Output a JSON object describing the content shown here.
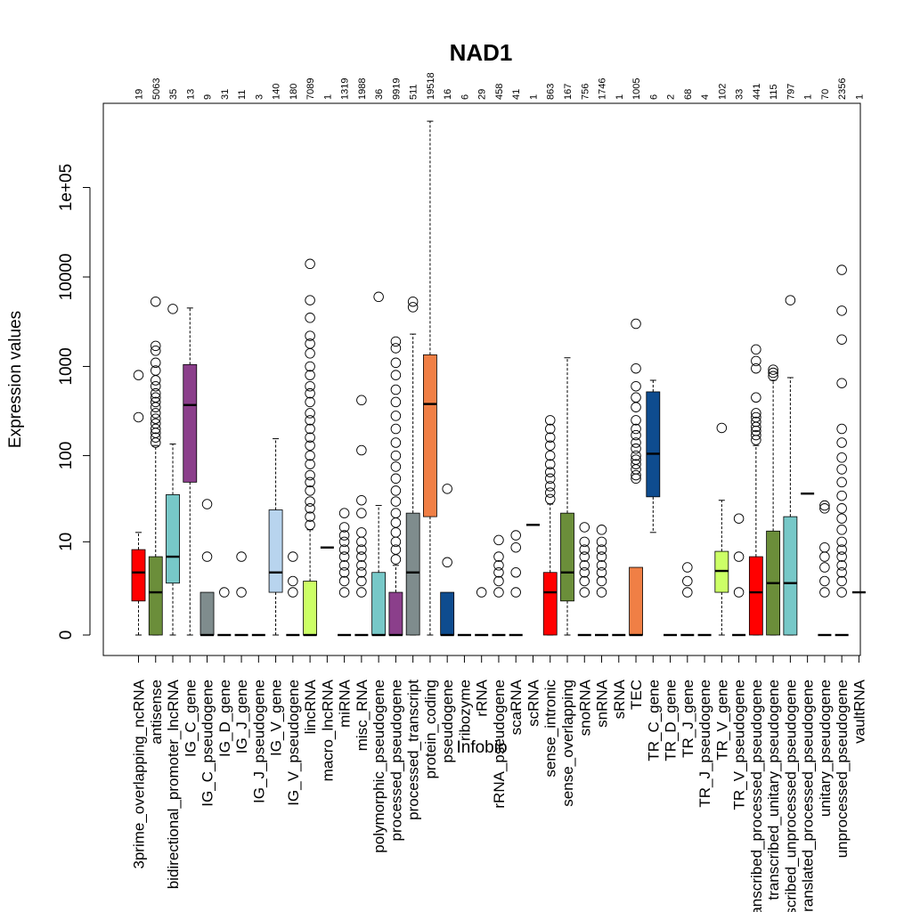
{
  "chart_data": {
    "type": "boxplot",
    "title": "NAD1",
    "xlabel": "Infobio",
    "ylabel": "Expression values",
    "y_scale": "log1p",
    "y_ticks": [
      {
        "value": 0,
        "label": "0"
      },
      {
        "value": 10,
        "label": "10"
      },
      {
        "value": 100,
        "label": "100"
      },
      {
        "value": 1000,
        "label": "1000"
      },
      {
        "value": 10000,
        "label": "10000"
      },
      {
        "value": 100000,
        "label": "1e+05"
      }
    ],
    "categories": [
      {
        "name": "3prime_overlapping_ncRNA",
        "count": "19",
        "color": "#ff0000",
        "q1": 1.4,
        "median": 4,
        "q3": 8,
        "low": 0,
        "high": 13,
        "outliers": [
          270,
          800
        ]
      },
      {
        "name": "antisense",
        "count": "5063",
        "color": "#6b8e3a",
        "q1": 0,
        "median": 2,
        "q3": 6.5,
        "low": 0,
        "high": 130,
        "outliers": [
          140,
          160,
          180,
          200,
          230,
          260,
          300,
          350,
          400,
          450,
          500,
          600,
          700,
          900,
          1100,
          1500,
          1700,
          5300
        ]
      },
      {
        "name": "bidirectional_promoter_lncRNA",
        "count": "35",
        "color": "#77c8c8",
        "q1": 2.8,
        "median": 6.5,
        "q3": 36,
        "low": 0,
        "high": 135,
        "outliers": [
          4400
        ]
      },
      {
        "name": "IG_C_gene",
        "count": "13",
        "color": "#8b3f8b",
        "q1": 50,
        "median": 370,
        "q3": 1050,
        "low": 0,
        "high": 4500,
        "outliers": []
      },
      {
        "name": "IG_C_pseudogene",
        "count": "9",
        "color": "#7f8c8d",
        "q1": 0,
        "median": 0,
        "q3": 2,
        "low": 0,
        "high": 2,
        "outliers": [
          6.5,
          28
        ]
      },
      {
        "name": "IG_D_gene",
        "count": "31",
        "color": "#ffffff",
        "q1": 0,
        "median": 0,
        "q3": 0,
        "low": 0,
        "high": 0,
        "outliers": [
          2
        ]
      },
      {
        "name": "IG_J_gene",
        "count": "11",
        "color": "#ffffff",
        "q1": 0,
        "median": 0,
        "q3": 0,
        "low": 0,
        "high": 0,
        "outliers": [
          2,
          6.5
        ]
      },
      {
        "name": "IG_J_pseudogene",
        "count": "3",
        "color": "#ffffff",
        "q1": 0,
        "median": 0,
        "q3": 0,
        "low": 0,
        "high": 0,
        "outliers": []
      },
      {
        "name": "IG_V_gene",
        "count": "140",
        "color": "#b8d4ee",
        "q1": 2,
        "median": 4,
        "q3": 24,
        "low": 0,
        "high": 155,
        "outliers": []
      },
      {
        "name": "IG_V_pseudogene",
        "count": "180",
        "color": "#ffffff",
        "q1": 0,
        "median": 0,
        "q3": 0,
        "low": 0,
        "high": 0,
        "outliers": [
          2,
          3,
          6.5
        ]
      },
      {
        "name": "lincRNA",
        "count": "7089",
        "color": "#ccff66",
        "q1": 0,
        "median": 0,
        "q3": 3,
        "low": 0,
        "high": 14,
        "outliers": [
          16,
          20,
          25,
          30,
          40,
          50,
          60,
          80,
          100,
          130,
          160,
          200,
          250,
          300,
          400,
          500,
          600,
          800,
          1000,
          1400,
          1800,
          2200,
          3500,
          5500,
          14000
        ]
      },
      {
        "name": "macro_lncRNA",
        "count": "1",
        "color": "#ffffff",
        "q1": 8.5,
        "median": 8.5,
        "q3": 8.5,
        "low": 8.5,
        "high": 8.5,
        "outliers": []
      },
      {
        "name": "miRNA",
        "count": "1319",
        "color": "#ffffff",
        "q1": 0,
        "median": 0,
        "q3": 0,
        "low": 0,
        "high": 0,
        "outliers": [
          2,
          3,
          4,
          5,
          6.5,
          8,
          10,
          12,
          15,
          22
        ]
      },
      {
        "name": "misc_RNA",
        "count": "1988",
        "color": "#ffffff",
        "q1": 0,
        "median": 0,
        "q3": 0,
        "low": 0,
        "high": 0,
        "outliers": [
          2,
          3,
          4,
          5,
          6.5,
          8,
          10,
          13,
          22,
          31,
          115,
          420
        ]
      },
      {
        "name": "polymorphic_pseudogene",
        "count": "36",
        "color": "#77c8c8",
        "q1": 0,
        "median": 0,
        "q3": 4,
        "low": 0,
        "high": 27,
        "outliers": [
          6000
        ]
      },
      {
        "name": "processed_pseudogene",
        "count": "9919",
        "color": "#8b3f8b",
        "q1": 0,
        "median": 0,
        "q3": 2,
        "low": 0,
        "high": 5,
        "outliers": [
          6,
          8,
          10,
          13,
          17,
          22,
          30,
          40,
          55,
          75,
          100,
          140,
          200,
          280,
          400,
          550,
          800,
          1100,
          1600,
          1900
        ]
      },
      {
        "name": "processed_transcript",
        "count": "511",
        "color": "#7f8c8d",
        "q1": 0,
        "median": 4,
        "q3": 22,
        "low": 0,
        "high": 2300,
        "outliers": [
          4600,
          5300
        ]
      },
      {
        "name": "protein_coding",
        "count": "19518",
        "color": "#f07f45",
        "q1": 20,
        "median": 380,
        "q3": 1350,
        "low": 0,
        "high": 550000,
        "outliers": []
      },
      {
        "name": "pseudogene",
        "count": "16",
        "color": "#0e4c8f",
        "q1": 0,
        "median": 0,
        "q3": 2,
        "low": 0,
        "high": 2,
        "outliers": [
          5.5,
          42
        ]
      },
      {
        "name": "ribozyme",
        "count": "6",
        "color": "#ffffff",
        "q1": 0,
        "median": 0,
        "q3": 0,
        "low": 0,
        "high": 0,
        "outliers": []
      },
      {
        "name": "rRNA",
        "count": "29",
        "color": "#ffffff",
        "q1": 0,
        "median": 0,
        "q3": 0,
        "low": 0,
        "high": 0,
        "outliers": [
          2
        ]
      },
      {
        "name": "rRNA_pseudogene",
        "count": "458",
        "color": "#ffffff",
        "q1": 0,
        "median": 0,
        "q3": 0,
        "low": 0,
        "high": 0,
        "outliers": [
          2,
          3,
          4,
          5,
          6.5,
          10.5
        ]
      },
      {
        "name": "scaRNA",
        "count": "41",
        "color": "#ffffff",
        "q1": 0,
        "median": 0,
        "q3": 0,
        "low": 0,
        "high": 0,
        "outliers": [
          2,
          4,
          8.5,
          12
        ]
      },
      {
        "name": "scRNA",
        "count": "1",
        "color": "#ffffff",
        "q1": 16,
        "median": 16,
        "q3": 16,
        "low": 16,
        "high": 16,
        "outliers": []
      },
      {
        "name": "sense_intronic",
        "count": "863",
        "color": "#ff0000",
        "q1": 0,
        "median": 2,
        "q3": 4,
        "low": 0,
        "high": 28,
        "outliers": [
          32,
          38,
          45,
          55,
          65,
          80,
          100,
          130,
          160,
          200,
          250
        ]
      },
      {
        "name": "sense_overlapping",
        "count": "167",
        "color": "#6b8e3a",
        "q1": 1.4,
        "median": 4,
        "q3": 22,
        "low": 0,
        "high": 1250,
        "outliers": []
      },
      {
        "name": "snoRNA",
        "count": "756",
        "color": "#ffffff",
        "q1": 0,
        "median": 0,
        "q3": 0,
        "low": 0,
        "high": 0,
        "outliers": [
          2,
          3,
          4,
          5,
          6.5,
          8,
          10,
          15
        ]
      },
      {
        "name": "snRNA",
        "count": "1746",
        "color": "#ffffff",
        "q1": 0,
        "median": 0,
        "q3": 0,
        "low": 0,
        "high": 0,
        "outliers": [
          2,
          3,
          4,
          5,
          6.5,
          8,
          10,
          14
        ]
      },
      {
        "name": "sRNA",
        "count": "1",
        "color": "#ffffff",
        "q1": 0,
        "median": 0,
        "q3": 0,
        "low": 0,
        "high": 0,
        "outliers": []
      },
      {
        "name": "TEC",
        "count": "1005",
        "color": "#f07f45",
        "q1": 0,
        "median": 0,
        "q3": 4.7,
        "low": 0,
        "high": 4.7,
        "outliers": [
          55,
          60,
          70,
          80,
          90,
          100,
          120,
          140,
          170,
          200,
          250,
          350,
          450,
          600,
          950,
          3000
        ]
      },
      {
        "name": "TR_C_gene",
        "count": "6",
        "color": "#0e4c8f",
        "q1": 34,
        "median": 105,
        "q3": 520,
        "low": 13,
        "high": 700,
        "outliers": []
      },
      {
        "name": "TR_D_gene",
        "count": "2",
        "color": "#ffffff",
        "q1": 0,
        "median": 0,
        "q3": 0,
        "low": 0,
        "high": 0,
        "outliers": []
      },
      {
        "name": "TR_J_gene",
        "count": "68",
        "color": "#ffffff",
        "q1": 0,
        "median": 0,
        "q3": 0,
        "low": 0,
        "high": 0,
        "outliers": [
          2,
          3,
          4.7
        ]
      },
      {
        "name": "TR_J_pseudogene",
        "count": "4",
        "color": "#ffffff",
        "q1": 0,
        "median": 0,
        "q3": 0,
        "low": 0,
        "high": 0,
        "outliers": []
      },
      {
        "name": "TR_V_gene",
        "count": "102",
        "color": "#ccff66",
        "q1": 2,
        "median": 4.2,
        "q3": 7.6,
        "low": 0,
        "high": 31,
        "outliers": [
          205
        ]
      },
      {
        "name": "TR_V_pseudogene",
        "count": "33",
        "color": "#ffffff",
        "q1": 0,
        "median": 0,
        "q3": 0,
        "low": 0,
        "high": 0,
        "outliers": [
          2,
          6.5,
          19
        ]
      },
      {
        "name": "transcribed_processed_pseudogene",
        "count": "441",
        "color": "#ff0000",
        "q1": 0,
        "median": 2,
        "q3": 6.5,
        "low": 0,
        "high": 130,
        "outliers": [
          150,
          170,
          190,
          210,
          240,
          270,
          300,
          450,
          950,
          1150,
          1550
        ]
      },
      {
        "name": "transcribed_unitary_pseudogene",
        "count": "115",
        "color": "#6b8e3a",
        "q1": 0,
        "median": 2.8,
        "q3": 13.5,
        "low": 0,
        "high": 700,
        "outliers": [
          780,
          850,
          920
        ]
      },
      {
        "name": "transcribed_unprocessed_pseudogene",
        "count": "797",
        "color": "#77c8c8",
        "q1": 0,
        "median": 2.8,
        "q3": 20,
        "low": 0,
        "high": 750,
        "outliers": [
          5500
        ]
      },
      {
        "name": "translated_processed_pseudogene",
        "count": "1",
        "color": "#ffffff",
        "q1": 37,
        "median": 37,
        "q3": 37,
        "low": 37,
        "high": 37,
        "outliers": []
      },
      {
        "name": "unitary_pseudogene",
        "count": "70",
        "color": "#ffffff",
        "q1": 0,
        "median": 0,
        "q3": 0,
        "low": 0,
        "high": 0,
        "outliers": [
          2,
          3,
          4.7,
          6.5,
          8.5,
          25,
          27
        ]
      },
      {
        "name": "unprocessed_pseudogene",
        "count": "2356",
        "color": "#ffffff",
        "q1": 0,
        "median": 0,
        "q3": 0,
        "low": 0,
        "high": 0,
        "outliers": [
          2,
          3,
          4,
          5,
          6.5,
          8,
          10,
          14,
          19,
          25,
          35,
          50,
          70,
          95,
          140,
          200,
          650,
          2000,
          4200,
          12000
        ]
      },
      {
        "name": "vaultRNA",
        "count": "1",
        "color": "#ffffff",
        "q1": 2,
        "median": 2,
        "q3": 2,
        "low": 2,
        "high": 2,
        "outliers": []
      }
    ]
  }
}
